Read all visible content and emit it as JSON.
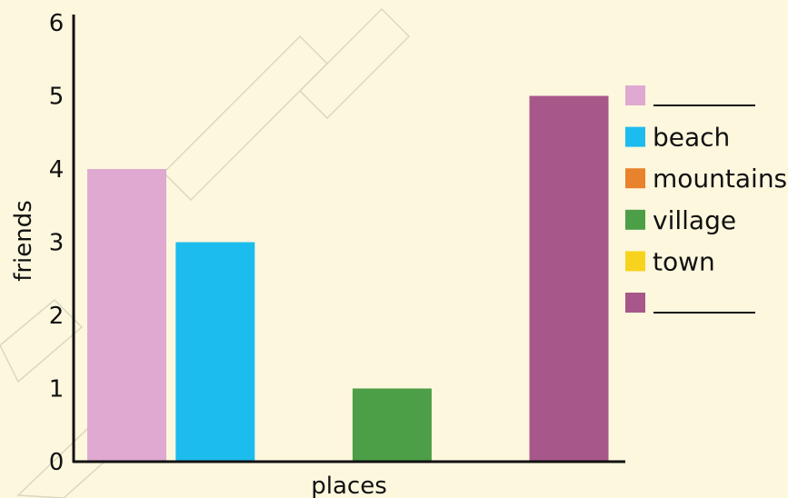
{
  "chart_data": {
    "type": "bar",
    "xlabel": "places",
    "ylabel": "friends",
    "ylim": [
      0,
      6
    ],
    "yticks": [
      0,
      1,
      2,
      3,
      4,
      5,
      6
    ],
    "grid": false,
    "legend_position": "right",
    "categories": [
      "",
      "beach",
      "mountains",
      "village",
      "town",
      ""
    ],
    "values": [
      4,
      3,
      0,
      1,
      0,
      5
    ],
    "colors": [
      "#e0a9d1",
      "#1dbcee",
      "#e8822c",
      "#4c9e47",
      "#f8d31d",
      "#a8578a"
    ],
    "legend": [
      {
        "label": "",
        "color": "#e0a9d1",
        "blank": true
      },
      {
        "label": "beach",
        "color": "#1dbcee",
        "blank": false
      },
      {
        "label": "mountains",
        "color": "#e8822c",
        "blank": false
      },
      {
        "label": "village",
        "color": "#4c9e47",
        "blank": false
      },
      {
        "label": "town",
        "color": "#f8d31d",
        "blank": false
      },
      {
        "label": "",
        "color": "#a8578a",
        "blank": true
      }
    ]
  }
}
